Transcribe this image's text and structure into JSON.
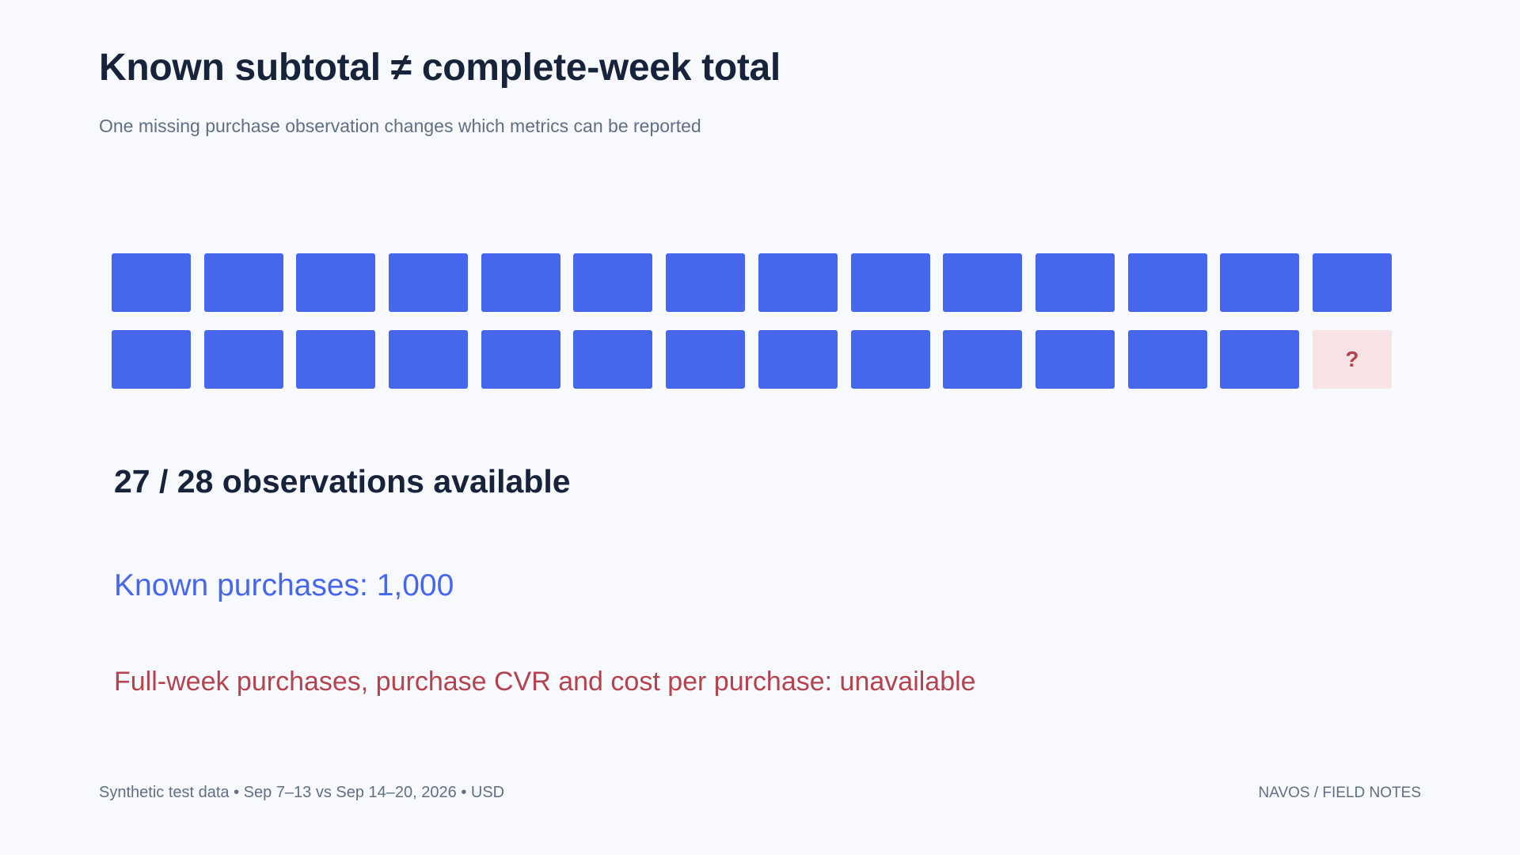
{
  "header": {
    "title": "Known subtotal ≠ complete-week total",
    "subtitle": "One missing purchase observation changes which metrics can be reported"
  },
  "observations": {
    "total": 28,
    "available": 27,
    "missing_indices": [
      27
    ],
    "missing_mark": "?",
    "available_color": "#4666ee",
    "missing_color": "#f7e2e5",
    "missing_mark_color": "#b5424f"
  },
  "summary": {
    "count_text": "27 / 28 observations available",
    "known_text": "Known purchases: 1,000",
    "unavailable_text": "Full-week purchases, purchase CVR and cost per purchase: unavailable"
  },
  "footer": {
    "left": "Synthetic test data • Sep 7–13 vs Sep 14–20, 2026 • USD",
    "right": "NAVOS / FIELD NOTES"
  }
}
